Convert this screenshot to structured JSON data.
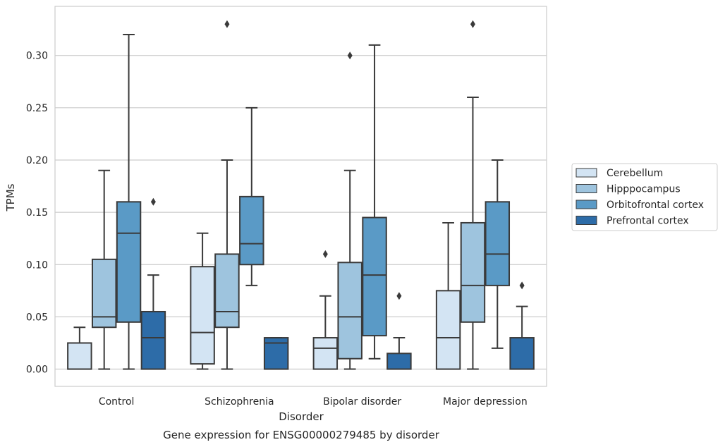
{
  "chart_data": {
    "type": "box",
    "caption": "Gene expression for ENSG00000279485 by disorder",
    "xlabel": "Disorder",
    "ylabel": "TPMs",
    "ylim": [
      -0.0165,
      0.347
    ],
    "yticks": [
      0.0,
      0.05,
      0.1,
      0.15,
      0.2,
      0.25,
      0.3
    ],
    "ytick_labels": [
      "0.00",
      "0.05",
      "0.10",
      "0.15",
      "0.20",
      "0.25",
      "0.30"
    ],
    "grid": "horizontal",
    "legend_position": "right",
    "categories": [
      "Control",
      "Schizophrenia",
      "Bipolar disorder",
      "Major depression"
    ],
    "series": [
      {
        "name": "Cerebellum",
        "color": "#d3e4f3",
        "boxes": [
          {
            "whislo": 0.0,
            "q1": 0.0,
            "med": 0.0,
            "q3": 0.025,
            "whishi": 0.04,
            "fliers": []
          },
          {
            "whislo": 0.0,
            "q1": 0.005,
            "med": 0.035,
            "q3": 0.098,
            "whishi": 0.13,
            "fliers": []
          },
          {
            "whislo": 0.0,
            "q1": 0.0,
            "med": 0.02,
            "q3": 0.03,
            "whishi": 0.07,
            "fliers": [
              0.11
            ]
          },
          {
            "whislo": 0.0,
            "q1": 0.0,
            "med": 0.03,
            "q3": 0.075,
            "whishi": 0.14,
            "fliers": []
          }
        ]
      },
      {
        "name": "Hipppocampus",
        "color": "#9ec4de",
        "boxes": [
          {
            "whislo": 0.0,
            "q1": 0.04,
            "med": 0.05,
            "q3": 0.105,
            "whishi": 0.19,
            "fliers": []
          },
          {
            "whislo": 0.0,
            "q1": 0.04,
            "med": 0.055,
            "q3": 0.11,
            "whishi": 0.2,
            "fliers": [
              0.33
            ]
          },
          {
            "whislo": 0.0,
            "q1": 0.01,
            "med": 0.05,
            "q3": 0.102,
            "whishi": 0.19,
            "fliers": [
              0.3
            ]
          },
          {
            "whislo": 0.0,
            "q1": 0.045,
            "med": 0.08,
            "q3": 0.14,
            "whishi": 0.26,
            "fliers": [
              0.33
            ]
          }
        ]
      },
      {
        "name": "Orbitofrontal cortex",
        "color": "#5a9ac6",
        "boxes": [
          {
            "whislo": 0.0,
            "q1": 0.045,
            "med": 0.13,
            "q3": 0.16,
            "whishi": 0.32,
            "fliers": []
          },
          {
            "whislo": 0.08,
            "q1": 0.1,
            "med": 0.12,
            "q3": 0.165,
            "whishi": 0.25,
            "fliers": []
          },
          {
            "whislo": 0.01,
            "q1": 0.032,
            "med": 0.09,
            "q3": 0.145,
            "whishi": 0.31,
            "fliers": []
          },
          {
            "whislo": 0.02,
            "q1": 0.08,
            "med": 0.11,
            "q3": 0.16,
            "whishi": 0.2,
            "fliers": []
          }
        ]
      },
      {
        "name": "Prefrontal cortex",
        "color": "#2d6ca8",
        "boxes": [
          {
            "whislo": 0.0,
            "q1": 0.0,
            "med": 0.03,
            "q3": 0.055,
            "whishi": 0.09,
            "fliers": [
              0.16
            ]
          },
          {
            "whislo": 0.0,
            "q1": 0.0,
            "med": 0.025,
            "q3": 0.03,
            "whishi": 0.03,
            "fliers": []
          },
          {
            "whislo": 0.0,
            "q1": 0.0,
            "med": 0.0,
            "q3": 0.015,
            "whishi": 0.03,
            "fliers": [
              0.07
            ]
          },
          {
            "whislo": 0.0,
            "q1": 0.0,
            "med": 0.0,
            "q3": 0.03,
            "whishi": 0.06,
            "fliers": [
              0.08
            ]
          }
        ]
      }
    ]
  }
}
